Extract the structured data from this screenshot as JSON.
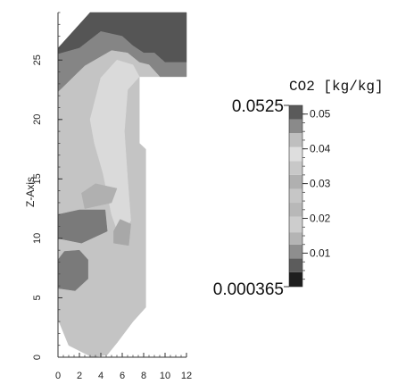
{
  "chart_data": {
    "type": "heatmap",
    "title": "",
    "xlabel": "",
    "ylabel": "Z-Axis",
    "xlim": [
      0,
      12
    ],
    "ylim": [
      0,
      29
    ],
    "xticks": [
      0,
      2,
      4,
      6,
      8,
      10,
      12
    ],
    "yticks": [
      0,
      5,
      10,
      15,
      20,
      25
    ],
    "colorbar": {
      "title": "CO2 [kg/kg]",
      "min_label": "0.000365",
      "max_label": "0.0525",
      "min": 0.000365,
      "max": 0.0525,
      "ticks": [
        0.01,
        0.02,
        0.03,
        0.04,
        0.05
      ],
      "tick_labels": [
        "0.01",
        "0.02",
        "0.03",
        "0.04",
        "0.05"
      ],
      "bands": [
        {
          "from": 0.000365,
          "to": 0.0045,
          "color": "#1e1e1e"
        },
        {
          "from": 0.0045,
          "to": 0.0085,
          "color": "#5c5c5c"
        },
        {
          "from": 0.0085,
          "to": 0.0125,
          "color": "#8e8e8e"
        },
        {
          "from": 0.0125,
          "to": 0.016,
          "color": "#b4b4b4"
        },
        {
          "from": 0.016,
          "to": 0.0205,
          "color": "#cdcdcd"
        },
        {
          "from": 0.0205,
          "to": 0.0245,
          "color": "#b8b8b8"
        },
        {
          "from": 0.0245,
          "to": 0.0285,
          "color": "#c6c6c6"
        },
        {
          "from": 0.0285,
          "to": 0.0325,
          "color": "#b0b0b0"
        },
        {
          "from": 0.0325,
          "to": 0.0365,
          "color": "#c8c8c8"
        },
        {
          "from": 0.0365,
          "to": 0.0405,
          "color": "#dedede"
        },
        {
          "from": 0.0405,
          "to": 0.0445,
          "color": "#bfbfbf"
        },
        {
          "from": 0.0445,
          "to": 0.0485,
          "color": "#8a8a8a"
        },
        {
          "from": 0.0485,
          "to": 0.0525,
          "color": "#5a5a5a"
        }
      ]
    },
    "regions": [
      {
        "name": "top-cap-dark",
        "color": "#555555",
        "points": [
          [
            3,
            29
          ],
          [
            12,
            29
          ],
          [
            12,
            24.8
          ],
          [
            10,
            24.8
          ],
          [
            9,
            25.6
          ],
          [
            8,
            25.6
          ],
          [
            7,
            26.2
          ],
          [
            6,
            27
          ],
          [
            4,
            27.4
          ],
          [
            2,
            26
          ],
          [
            0,
            25.5
          ],
          [
            0,
            26
          ],
          [
            2,
            28
          ],
          [
            3,
            29
          ]
        ]
      },
      {
        "name": "top-cap-mid",
        "color": "#858585",
        "points": [
          [
            0,
            25.5
          ],
          [
            2,
            26
          ],
          [
            4,
            27.4
          ],
          [
            6,
            27
          ],
          [
            7,
            26.2
          ],
          [
            8,
            25.6
          ],
          [
            9,
            25.6
          ],
          [
            10,
            24.8
          ],
          [
            12,
            24.8
          ],
          [
            12,
            23.6
          ],
          [
            9.5,
            23.6
          ],
          [
            8.5,
            24.6
          ],
          [
            7.6,
            24.8
          ],
          [
            6.5,
            25.6
          ],
          [
            5,
            25.8
          ],
          [
            2.5,
            24.5
          ],
          [
            0,
            22.3
          ]
        ]
      },
      {
        "name": "body-light",
        "color": "#c4c4c4",
        "points": [
          [
            0,
            22.3
          ],
          [
            2.5,
            24.5
          ],
          [
            5,
            25.8
          ],
          [
            6.5,
            25.6
          ],
          [
            7.6,
            24.8
          ],
          [
            8.5,
            24.6
          ],
          [
            9.5,
            23.6
          ],
          [
            7.6,
            23.6
          ],
          [
            7.6,
            18
          ],
          [
            8.2,
            17.5
          ],
          [
            8.2,
            4.2
          ],
          [
            7,
            3
          ],
          [
            5.5,
            1.2
          ],
          [
            4.6,
            0.2
          ],
          [
            3.2,
            0
          ],
          [
            1,
            1
          ],
          [
            0,
            3.2
          ]
        ]
      },
      {
        "name": "plume",
        "color": "#dadada",
        "points": [
          [
            3,
            20
          ],
          [
            4,
            23.5
          ],
          [
            5.5,
            25
          ],
          [
            7,
            24.6
          ],
          [
            7.6,
            23.6
          ],
          [
            6.5,
            22.5
          ],
          [
            6.2,
            19
          ],
          [
            6.5,
            15
          ],
          [
            6.8,
            11.5
          ],
          [
            5.8,
            10
          ],
          [
            5,
            12
          ],
          [
            4.2,
            15.5
          ],
          [
            3.4,
            18
          ]
        ]
      },
      {
        "name": "jet-upper",
        "color": "#1c1c1c",
        "points": [
          [
            0,
            10.4
          ],
          [
            2,
            10.2
          ],
          [
            3.5,
            10.6
          ],
          [
            4.2,
            11.2
          ],
          [
            3.2,
            11.8
          ],
          [
            1.5,
            11.9
          ],
          [
            0,
            11.5
          ]
        ]
      },
      {
        "name": "jet-lower",
        "color": "#1c1c1c",
        "points": [
          [
            0,
            6.2
          ],
          [
            1.2,
            6.1
          ],
          [
            2.2,
            6.8
          ],
          [
            2.4,
            7.8
          ],
          [
            1.8,
            8.6
          ],
          [
            0.8,
            8.4
          ],
          [
            0,
            7.6
          ]
        ]
      },
      {
        "name": "jet-upper-halo",
        "color": "#7a7a7a",
        "points": [
          [
            0,
            10
          ],
          [
            2.2,
            9.6
          ],
          [
            4.6,
            10.6
          ],
          [
            4.4,
            12.4
          ],
          [
            2,
            12.4
          ],
          [
            0,
            12
          ]
        ]
      },
      {
        "name": "jet-lower-halo",
        "color": "#7a7a7a",
        "points": [
          [
            0,
            5.8
          ],
          [
            1.6,
            5.6
          ],
          [
            2.8,
            6.6
          ],
          [
            2.8,
            8.2
          ],
          [
            2,
            9
          ],
          [
            0.6,
            8.9
          ],
          [
            0,
            8.2
          ]
        ]
      },
      {
        "name": "side-patch",
        "color": "#a8a8a8",
        "points": [
          [
            5.2,
            9.6
          ],
          [
            6.6,
            9.4
          ],
          [
            6.8,
            11.2
          ],
          [
            5.8,
            11.6
          ],
          [
            5.2,
            10.6
          ]
        ]
      },
      {
        "name": "mid-patch",
        "color": "#b0b0b0",
        "points": [
          [
            2.5,
            12.5
          ],
          [
            5,
            13
          ],
          [
            5.5,
            14.2
          ],
          [
            3.5,
            14.6
          ],
          [
            2.2,
            13.8
          ]
        ]
      }
    ]
  }
}
